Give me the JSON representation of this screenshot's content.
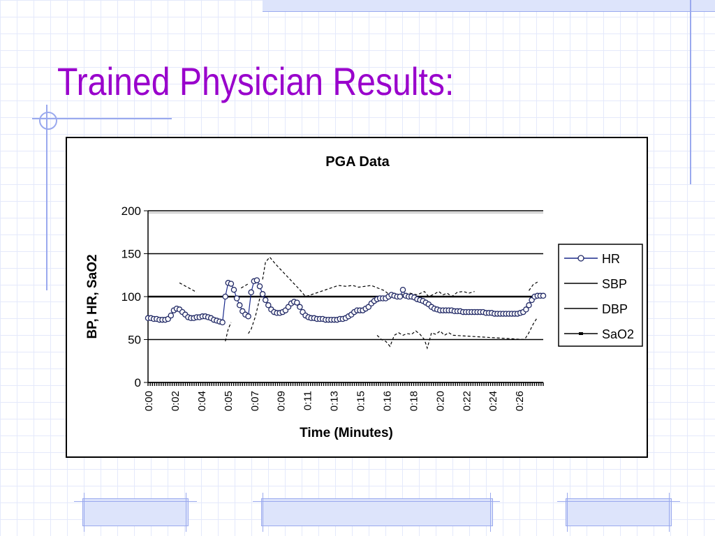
{
  "slide": {
    "title": "Trained Physician Results:"
  },
  "chart_data": {
    "type": "line",
    "title": "PGA Data",
    "xlabel": "Time (Minutes)",
    "ylabel": "BP, HR, SaO2",
    "ylim": [
      0,
      200
    ],
    "yticks": [
      0,
      50,
      100,
      150,
      200
    ],
    "x_categories": [
      "0:00",
      "0:02",
      "0:04",
      "0:05",
      "0:07",
      "0:09",
      "0:11",
      "0:13",
      "0:15",
      "0:16",
      "0:18",
      "0:20",
      "0:22",
      "0:24",
      "0:26"
    ],
    "grid": "horizontal",
    "legend": {
      "position": "right",
      "entries": [
        "HR",
        "SBP",
        "DBP",
        "SaO2"
      ]
    },
    "series": [
      {
        "name": "HR",
        "color": "#1a2a8c",
        "marker": "circle",
        "x": [
          0,
          0.2,
          0.4,
          0.6,
          0.8,
          1.0,
          1.2,
          1.4,
          1.6,
          1.8,
          2.0,
          2.2,
          2.4,
          2.6,
          2.8,
          3.0,
          3.2,
          3.4,
          3.6,
          3.8,
          4.0,
          4.2,
          4.4,
          4.6,
          4.8,
          5.0,
          5.2,
          5.4,
          5.6,
          5.8,
          6.0,
          6.2,
          6.4,
          6.6,
          6.8,
          7.0,
          7.2,
          7.4,
          7.6,
          7.8,
          8.0,
          8.2,
          8.4,
          8.6,
          8.8,
          9.0,
          9.2,
          9.4,
          9.6,
          9.8,
          10.0,
          10.2,
          10.4,
          10.6,
          10.8,
          11.0,
          11.2,
          11.4,
          11.6,
          11.8,
          12.0,
          12.2,
          12.4,
          12.6,
          12.8,
          13.0,
          13.2,
          13.4,
          13.6,
          13.8,
          14.0,
          14.2,
          14.4,
          14.6,
          14.8,
          15.0,
          15.2,
          15.4,
          15.6,
          15.8,
          16.0,
          16.2,
          16.4,
          16.6,
          16.8,
          17.0,
          17.2,
          17.4,
          17.6,
          17.8,
          18.0,
          18.2,
          18.4,
          18.6,
          18.8,
          19.0,
          19.2,
          19.4,
          19.6,
          19.8,
          20.0,
          20.2,
          20.4,
          20.6,
          20.8,
          21.0,
          21.2,
          21.4,
          21.6,
          21.8,
          22.0,
          22.2,
          22.4,
          22.6,
          22.8,
          23.0,
          23.2,
          23.4,
          23.6,
          23.8,
          24.0,
          24.2,
          24.4,
          24.6,
          24.8,
          25.0,
          25.2,
          25.4,
          25.6,
          25.8,
          26.0,
          26.2,
          26.4,
          26.6,
          26.8,
          27.0,
          27.2,
          27.4,
          27.6
        ],
        "values": [
          75,
          75,
          74,
          74,
          73,
          73,
          73,
          74,
          78,
          84,
          86,
          85,
          82,
          79,
          76,
          75,
          75,
          76,
          76,
          77,
          77,
          76,
          75,
          73,
          72,
          71,
          70,
          100,
          116,
          115,
          108,
          98,
          90,
          83,
          79,
          77,
          105,
          118,
          119,
          112,
          103,
          96,
          90,
          85,
          82,
          81,
          81,
          82,
          84,
          88,
          92,
          94,
          93,
          88,
          82,
          78,
          76,
          75,
          75,
          74,
          74,
          74,
          73,
          73,
          73,
          73,
          73,
          74,
          74,
          75,
          77,
          79,
          82,
          84,
          84,
          84,
          86,
          88,
          92,
          95,
          97,
          98,
          98,
          98,
          100,
          102,
          101,
          100,
          100,
          108,
          101,
          100,
          100,
          99,
          97,
          96,
          95,
          93,
          91,
          88,
          86,
          85,
          84,
          84,
          84,
          84,
          84,
          83,
          83,
          83,
          82,
          82,
          82,
          82,
          82,
          82,
          82,
          82,
          81,
          81,
          81,
          80,
          80,
          80,
          80,
          80,
          80,
          80,
          80,
          80,
          81,
          82,
          85,
          90,
          96,
          100,
          101,
          101,
          101
        ]
      },
      {
        "name": "SBP",
        "color": "#000000",
        "x": [
          1.8,
          2.2,
          3.4,
          3.5,
          5.5,
          5.8,
          6.5,
          7.0,
          7.2,
          8.0,
          8.2,
          8.5,
          8.9,
          10.6,
          11.0,
          13.3,
          13.8,
          14.3,
          14.7,
          15.6,
          15.9,
          16.5,
          16.8,
          17.0,
          17.2,
          17.5,
          17.8,
          18.3,
          18.8,
          19.3,
          19.6,
          20.0,
          20.3,
          20.6,
          20.9,
          21.2,
          21.6,
          22.0,
          22.4,
          22.8,
          26.3,
          26.6,
          26.9,
          27.2
        ],
        "values": [
          null,
          116,
          105,
          null,
          null,
          null,
          110,
          115,
          null,
          120,
          140,
          146,
          138,
          108,
          100,
          113,
          112,
          113,
          111,
          113,
          111,
          107,
          103,
          100,
          104,
          100,
          103,
          104,
          102,
          106,
          100,
          103,
          106,
          102,
          104,
          100,
          105,
          106,
          104,
          106,
          null,
          107,
          114,
          117
        ]
      },
      {
        "name": "DBP",
        "color": "#000000",
        "x": [
          5.4,
          5.6,
          5.8,
          6.0,
          7.0,
          7.2,
          7.5,
          7.8,
          8.0,
          16.0,
          16.3,
          16.6,
          16.9,
          17.2,
          17.5,
          17.8,
          18.1,
          18.4,
          18.7,
          19.0,
          19.3,
          19.5,
          19.8,
          20.1,
          20.4,
          20.7,
          21.0,
          21.3,
          26.3,
          26.6,
          26.9,
          27.2
        ],
        "values": [
          48,
          62,
          70,
          null,
          57,
          62,
          77,
          98,
          null,
          55,
          50,
          48,
          42,
          55,
          58,
          55,
          57,
          56,
          60,
          56,
          50,
          40,
          58,
          56,
          60,
          55,
          58,
          55,
          50,
          58,
          68,
          76
        ]
      },
      {
        "name": "SaO2",
        "color": "#000000",
        "x": [
          0,
          27.6
        ],
        "values": [
          100,
          100
        ]
      }
    ]
  }
}
